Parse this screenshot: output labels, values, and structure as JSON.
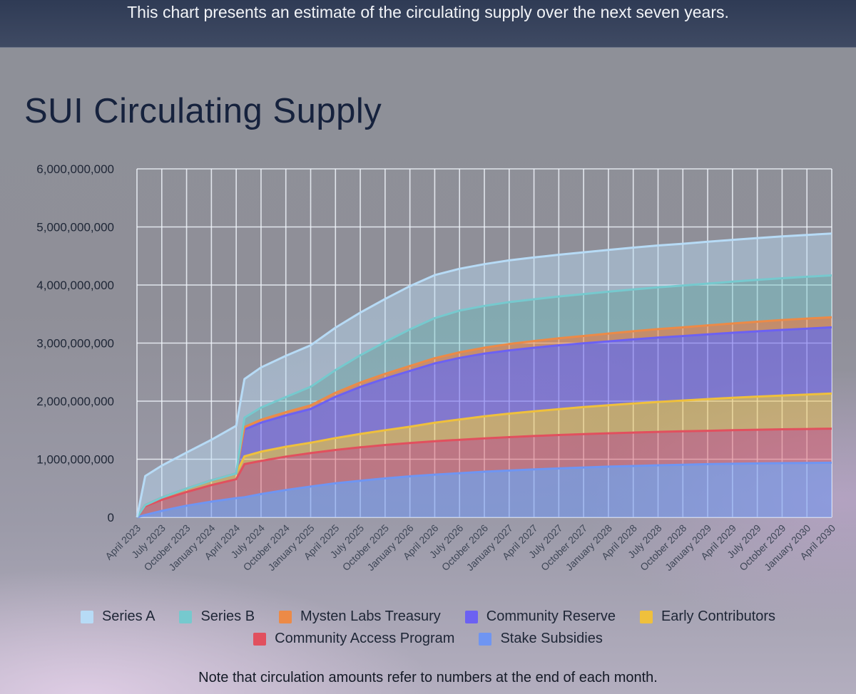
{
  "header": {
    "banner_text": "This chart presents an estimate of the circulating supply over the next seven years."
  },
  "footer": {
    "note": "Note that circulation amounts refer to numbers at the end of each month."
  },
  "chart_data": {
    "type": "area",
    "stacked": true,
    "title": "SUI Circulating Supply",
    "xlabel": "",
    "ylabel": "",
    "ylim": [
      0,
      6000000000
    ],
    "y_ticks": [
      0,
      1000000000,
      2000000000,
      3000000000,
      4000000000,
      5000000000,
      6000000000
    ],
    "y_tick_labels": [
      "0",
      "1,000,000,000",
      "2,000,000,000",
      "3,000,000,000",
      "4,000,000,000",
      "5,000,000,000",
      "6,000,000,000"
    ],
    "x_tick_labels": [
      "April 2023",
      "July 2023",
      "October 2023",
      "January 2024",
      "April 2024",
      "July 2024",
      "October 2024",
      "January 2025",
      "April 2025",
      "July 2025",
      "October 2025",
      "January 2026",
      "April 2026",
      "July 2026",
      "October 2026",
      "January 2027",
      "April 2027",
      "July 2027",
      "October 2027",
      "January 2028",
      "April 2028",
      "July 2028",
      "October 2028",
      "January 2029",
      "April 2029",
      "July 2029",
      "October 2029",
      "January 2030",
      "April 2030"
    ],
    "x": [
      "2023-04",
      "2023-05",
      "2023-07",
      "2023-10",
      "2024-01",
      "2024-04",
      "2024-05",
      "2024-07",
      "2024-10",
      "2025-01",
      "2025-04",
      "2025-07",
      "2025-10",
      "2026-01",
      "2026-04",
      "2026-07",
      "2026-10",
      "2027-01",
      "2027-04",
      "2027-07",
      "2027-10",
      "2028-01",
      "2028-04",
      "2028-07",
      "2028-10",
      "2029-01",
      "2029-04",
      "2029-07",
      "2029-10",
      "2030-01",
      "2030-04"
    ],
    "grid": true,
    "legend_position": "bottom",
    "series": [
      {
        "name": "Stake Subsidies",
        "color": "#6f95f2",
        "values": [
          0,
          40000000,
          110000000,
          200000000,
          270000000,
          330000000,
          345000000,
          400000000,
          470000000,
          530000000,
          585000000,
          630000000,
          670000000,
          705000000,
          735000000,
          760000000,
          785000000,
          805000000,
          825000000,
          842000000,
          858000000,
          872000000,
          884000000,
          896000000,
          906000000,
          915000000,
          922000000,
          928000000,
          933000000,
          936000000,
          940000000
        ]
      },
      {
        "name": "Community Access Program",
        "color": "#e1505e",
        "values": [
          0,
          150000000,
          190000000,
          235000000,
          285000000,
          325000000,
          570000000,
          570000000,
          575000000,
          575000000,
          575000000,
          575000000,
          575000000,
          575000000,
          575000000,
          575000000,
          575000000,
          575000000,
          575000000,
          575000000,
          575000000,
          575000000,
          575000000,
          575000000,
          575000000,
          575000000,
          578000000,
          580000000,
          582000000,
          584000000,
          586000000
        ]
      },
      {
        "name": "Early Contributors",
        "color": "#efc03c",
        "values": [
          0,
          20000000,
          40000000,
          60000000,
          80000000,
          100000000,
          135000000,
          160000000,
          170000000,
          180000000,
          205000000,
          230000000,
          255000000,
          280000000,
          320000000,
          350000000,
          380000000,
          405000000,
          425000000,
          445000000,
          465000000,
          483000000,
          500000000,
          515000000,
          530000000,
          545000000,
          558000000,
          570000000,
          582000000,
          594000000,
          605000000
        ]
      },
      {
        "name": "Community Reserve",
        "color": "#6c61f2",
        "values": [
          0,
          0,
          0,
          0,
          0,
          0,
          460000000,
          500000000,
          540000000,
          580000000,
          710000000,
          810000000,
          890000000,
          960000000,
          1020000000,
          1060000000,
          1080000000,
          1090000000,
          1095000000,
          1100000000,
          1100000000,
          1100000000,
          1105000000,
          1110000000,
          1110000000,
          1115000000,
          1120000000,
          1125000000,
          1130000000,
          1135000000,
          1140000000
        ]
      },
      {
        "name": "Mysten Labs Treasury",
        "color": "#ec8a47",
        "values": [
          0,
          0,
          0,
          0,
          0,
          0,
          45000000,
          50000000,
          55000000,
          62000000,
          70000000,
          75000000,
          80000000,
          85000000,
          90000000,
          95000000,
          100000000,
          110000000,
          115000000,
          120000000,
          125000000,
          135000000,
          140000000,
          145000000,
          150000000,
          155000000,
          160000000,
          165000000,
          170000000,
          173000000,
          175000000
        ]
      },
      {
        "name": "Series B",
        "color": "#76c9ce",
        "values": [
          0,
          0,
          0,
          0,
          0,
          0,
          160000000,
          210000000,
          260000000,
          320000000,
          390000000,
          470000000,
          550000000,
          630000000,
          690000000,
          720000000,
          720000000,
          720000000,
          720000000,
          720000000,
          720000000,
          720000000,
          720000000,
          720000000,
          720000000,
          720000000,
          720000000,
          720000000,
          720000000,
          720000000,
          720000000
        ]
      },
      {
        "name": "Series A",
        "color": "#b7dbf6",
        "values": [
          0,
          500000000,
          550000000,
          620000000,
          700000000,
          820000000,
          665000000,
          690000000,
          710000000,
          715000000,
          730000000,
          735000000,
          740000000,
          745000000,
          740000000,
          720000000,
          720000000,
          720000000,
          720000000,
          720000000,
          720000000,
          720000000,
          720000000,
          720000000,
          720000000,
          720000000,
          720000000,
          720000000,
          720000000,
          720000000,
          720000000
        ]
      }
    ]
  },
  "legend": {
    "row1": [
      {
        "label": "Series A",
        "color": "#b7dbf6"
      },
      {
        "label": "Series B",
        "color": "#76c9ce"
      },
      {
        "label": "Mysten Labs Treasury",
        "color": "#ec8a47"
      },
      {
        "label": "Community Reserve",
        "color": "#6c61f2"
      },
      {
        "label": "Early Contributors",
        "color": "#efc03c"
      }
    ],
    "row2": [
      {
        "label": "Community Access Program",
        "color": "#e1505e"
      },
      {
        "label": "Stake Subsidies",
        "color": "#6f95f2"
      }
    ]
  }
}
